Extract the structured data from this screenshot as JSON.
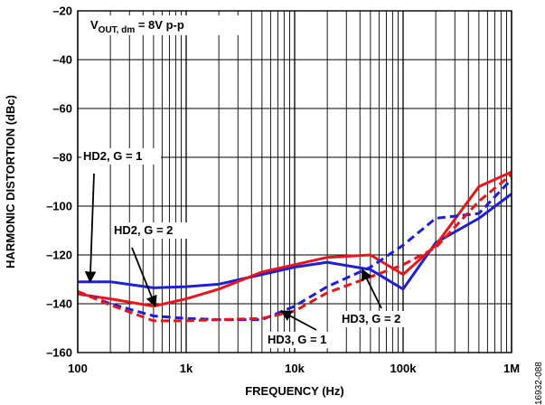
{
  "chart_data": {
    "type": "line",
    "x_scale": "log",
    "xlim": [
      100,
      1000000
    ],
    "ylim": [
      -160,
      -20
    ],
    "grid": true,
    "xlabel": "FREQUENCY (Hz)",
    "ylabel": "HARMONIC DISTORTION (dBc)",
    "x_ticks": [
      {
        "value": 100,
        "label": "100"
      },
      {
        "value": 1000,
        "label": "1k"
      },
      {
        "value": 10000,
        "label": "10k"
      },
      {
        "value": 100000,
        "label": "100k"
      },
      {
        "value": 1000000,
        "label": "1M"
      }
    ],
    "y_ticks": [
      {
        "value": -20,
        "label": "–20"
      },
      {
        "value": -40,
        "label": "–40"
      },
      {
        "value": -60,
        "label": "–60"
      },
      {
        "value": -80,
        "label": "–80"
      },
      {
        "value": -100,
        "label": "–100"
      },
      {
        "value": -120,
        "label": "–120"
      },
      {
        "value": -140,
        "label": "–140"
      },
      {
        "value": -160,
        "label": "–160"
      }
    ],
    "condition": {
      "prefix": "V",
      "subscript": "OUT, dm",
      "suffix": " = 8V p-p"
    },
    "figure_id": "16932-088",
    "series": [
      {
        "name": "HD2, G = 1",
        "color": "#1f1fd6",
        "dash": "solid",
        "points": [
          [
            100,
            -131
          ],
          [
            200,
            -131
          ],
          [
            500,
            -133.5
          ],
          [
            1000,
            -133
          ],
          [
            2000,
            -132
          ],
          [
            5000,
            -128
          ],
          [
            10000,
            -125
          ],
          [
            20000,
            -123
          ],
          [
            50000,
            -126
          ],
          [
            100000,
            -134
          ],
          [
            200000,
            -115
          ],
          [
            500000,
            -105
          ],
          [
            1000000,
            -95
          ]
        ]
      },
      {
        "name": "HD2, G = 2",
        "color": "#e8151b",
        "dash": "solid",
        "points": [
          [
            100,
            -136
          ],
          [
            200,
            -138
          ],
          [
            500,
            -141
          ],
          [
            1000,
            -138
          ],
          [
            2000,
            -134
          ],
          [
            5000,
            -127
          ],
          [
            10000,
            -124
          ],
          [
            20000,
            -121
          ],
          [
            50000,
            -120
          ],
          [
            100000,
            -128
          ],
          [
            200000,
            -116
          ],
          [
            500000,
            -92
          ],
          [
            1000000,
            -86
          ]
        ]
      },
      {
        "name": "HD3, G = 1",
        "color": "#1f1fd6",
        "dash": "dashed",
        "points": [
          [
            100,
            -135
          ],
          [
            200,
            -140
          ],
          [
            500,
            -145
          ],
          [
            1000,
            -146
          ],
          [
            2000,
            -146.5
          ],
          [
            5000,
            -146.5
          ],
          [
            10000,
            -141
          ],
          [
            20000,
            -133
          ],
          [
            50000,
            -125
          ],
          [
            100000,
            -116
          ],
          [
            200000,
            -105
          ],
          [
            500000,
            -103
          ],
          [
            1000000,
            -89
          ]
        ]
      },
      {
        "name": "HD3, G = 2",
        "color": "#e8151b",
        "dash": "dashed",
        "points": [
          [
            100,
            -135
          ],
          [
            200,
            -140.5
          ],
          [
            500,
            -147
          ],
          [
            1000,
            -147
          ],
          [
            2000,
            -146.5
          ],
          [
            5000,
            -146
          ],
          [
            10000,
            -143
          ],
          [
            20000,
            -135.5
          ],
          [
            50000,
            -129
          ],
          [
            100000,
            -124
          ],
          [
            200000,
            -117
          ],
          [
            500000,
            -98
          ],
          [
            1000000,
            -87
          ]
        ]
      }
    ],
    "annotations": [
      {
        "text": "HD2, G = 1",
        "target": [
          130,
          -131
        ]
      },
      {
        "text": "HD2, G = 2",
        "target": [
          520,
          -141
        ]
      },
      {
        "text": "HD3, G = 1",
        "target": [
          7500,
          -143
        ]
      },
      {
        "text": "HD3, G = 2",
        "target": [
          42000,
          -126
        ]
      }
    ]
  }
}
